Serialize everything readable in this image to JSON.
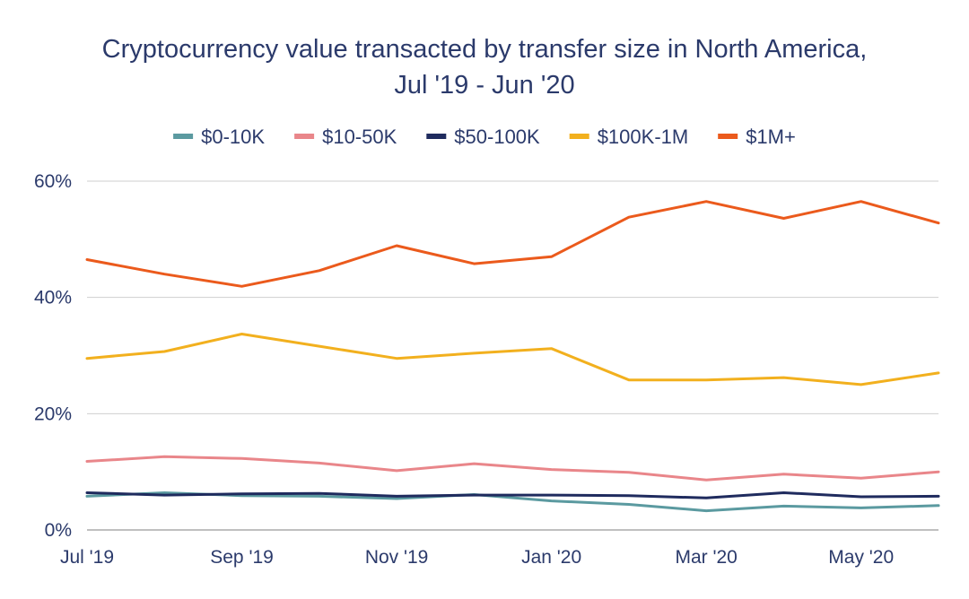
{
  "chart_data": {
    "type": "line",
    "title_lines": [
      "Cryptocurrency value transacted by transfer size in North America,",
      "Jul '19 - Jun '20"
    ],
    "x": [
      "Jul '19",
      "Aug '19",
      "Sep '19",
      "Oct '19",
      "Nov '19",
      "Dec '19",
      "Jan '20",
      "Feb '20",
      "Mar '20",
      "Apr '20",
      "May '20",
      "Jun '20"
    ],
    "x_tick_labels": [
      "Jul '19",
      "",
      "Sep '19",
      "",
      "Nov '19",
      "",
      "Jan '20",
      "",
      "Mar '20",
      "",
      "May '20",
      ""
    ],
    "ylim": [
      0,
      60
    ],
    "y_ticks": [
      0,
      20,
      40,
      60
    ],
    "y_tick_labels": [
      "0%",
      "20%",
      "40%",
      "60%"
    ],
    "grid": true,
    "legend_position": "top",
    "series": [
      {
        "name": "$0-10K",
        "color": "#5b9aa0",
        "values": [
          5.8,
          6.4,
          5.9,
          5.8,
          5.4,
          6.1,
          5.0,
          4.4,
          3.3,
          4.1,
          3.8,
          4.2
        ]
      },
      {
        "name": "$10-50K",
        "color": "#e9868a",
        "values": [
          11.8,
          12.6,
          12.3,
          11.5,
          10.2,
          11.4,
          10.4,
          9.9,
          8.6,
          9.6,
          8.9,
          10.0
        ]
      },
      {
        "name": "$50-100K",
        "color": "#1f2b5e",
        "values": [
          6.4,
          6.0,
          6.2,
          6.3,
          5.8,
          6.0,
          6.0,
          5.9,
          5.5,
          6.4,
          5.7,
          5.8
        ]
      },
      {
        "name": "$100K-1M",
        "color": "#f2b01e",
        "values": [
          29.5,
          30.7,
          33.7,
          31.6,
          29.5,
          30.4,
          31.2,
          25.8,
          25.8,
          26.2,
          25.0,
          27.0
        ]
      },
      {
        "name": "$1M+",
        "color": "#eb5a1c",
        "values": [
          46.5,
          44.0,
          41.9,
          44.6,
          48.9,
          45.8,
          47.0,
          53.8,
          56.5,
          53.6,
          56.5,
          52.8
        ]
      }
    ]
  }
}
